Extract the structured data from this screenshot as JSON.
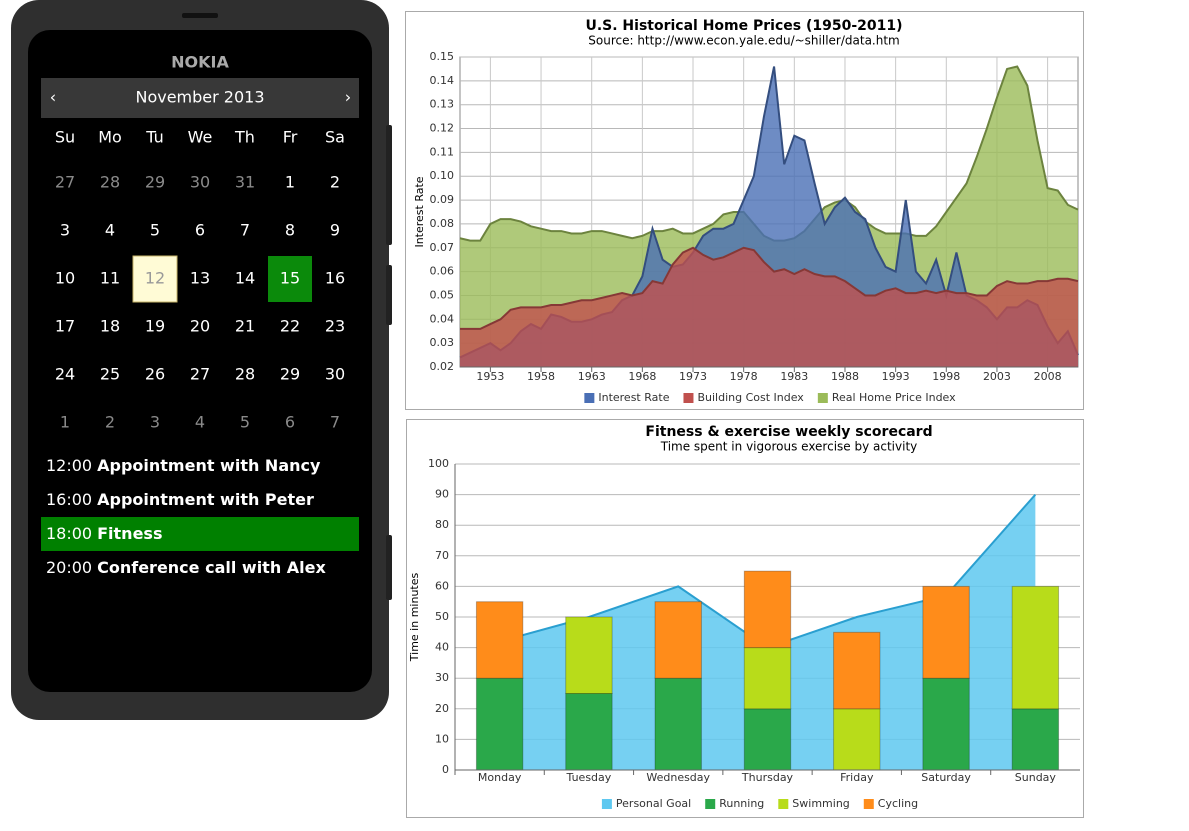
{
  "phone": {
    "brand": "NOKIA",
    "month": "November 2013",
    "prev": "‹",
    "next": "›",
    "weekdays": [
      "Su",
      "Mo",
      "Tu",
      "We",
      "Th",
      "Fr",
      "Sa"
    ],
    "prev_month_days": [
      27,
      28,
      29,
      30,
      31
    ],
    "month_days": [
      1,
      2,
      3,
      4,
      5,
      6,
      7,
      8,
      9,
      10,
      11,
      12,
      13,
      14,
      15,
      16,
      17,
      18,
      19,
      20,
      21,
      22,
      23,
      24,
      25,
      26,
      27,
      28,
      29,
      30
    ],
    "next_month_days": [
      1,
      2,
      3,
      4,
      5,
      6,
      7
    ],
    "today": 12,
    "selected": 15,
    "events": [
      {
        "time": "12:00",
        "title": "Appointment with Nancy",
        "selected": false
      },
      {
        "time": "16:00",
        "title": "Appointment with Peter",
        "selected": false
      },
      {
        "time": "18:00",
        "title": "Fitness",
        "selected": true
      },
      {
        "time": "20:00",
        "title": "Conference call with Alex",
        "selected": false
      }
    ]
  },
  "chart_data": [
    {
      "type": "area",
      "title": "U.S. Historical Home Prices (1950-2011)",
      "subtitle": "Source: http://www.econ.yale.edu/~shiller/data.htm",
      "y_label": "Interest Rate",
      "x": [
        1950,
        1951,
        1952,
        1953,
        1954,
        1955,
        1956,
        1957,
        1958,
        1959,
        1960,
        1961,
        1962,
        1963,
        1964,
        1965,
        1966,
        1967,
        1968,
        1969,
        1970,
        1971,
        1972,
        1973,
        1974,
        1975,
        1976,
        1977,
        1978,
        1979,
        1980,
        1981,
        1982,
        1983,
        1984,
        1985,
        1986,
        1987,
        1988,
        1989,
        1990,
        1991,
        1992,
        1993,
        1994,
        1995,
        1996,
        1997,
        1998,
        1999,
        2000,
        2001,
        2002,
        2003,
        2004,
        2005,
        2006,
        2007,
        2008,
        2009,
        2010,
        2011
      ],
      "xlim": [
        1950,
        2011
      ],
      "xticks": [
        1953,
        1958,
        1963,
        1968,
        1973,
        1978,
        1983,
        1988,
        1993,
        1998,
        2003,
        2008
      ],
      "ylim": [
        0.02,
        0.15
      ],
      "yticks": [
        0.02,
        0.03,
        0.04,
        0.05,
        0.06,
        0.07,
        0.08,
        0.09,
        {
          "value": 0.1,
          "label": "0.10"
        },
        0.11,
        0.12,
        0.13,
        0.14,
        0.15
      ],
      "grid": true,
      "legend": "bottom",
      "series": [
        {
          "name": "Interest Rate",
          "color": "#4a6fb5",
          "values": [
            0.024,
            0.026,
            0.028,
            0.03,
            0.027,
            0.03,
            0.035,
            0.038,
            0.036,
            0.042,
            0.041,
            0.039,
            0.039,
            0.04,
            0.042,
            0.043,
            0.048,
            0.05,
            0.058,
            0.078,
            0.065,
            0.062,
            0.063,
            0.068,
            0.075,
            0.078,
            0.078,
            0.08,
            0.09,
            0.1,
            0.125,
            0.146,
            0.105,
            0.117,
            0.115,
            0.097,
            0.08,
            0.087,
            0.091,
            0.085,
            0.082,
            0.07,
            0.062,
            0.06,
            0.09,
            0.06,
            0.055,
            0.065,
            0.05,
            0.068,
            0.05,
            0.048,
            0.045,
            0.04,
            0.045,
            0.045,
            0.048,
            0.046,
            0.037,
            0.03,
            0.035,
            0.025
          ]
        },
        {
          "name": "Building Cost Index",
          "color": "#c0504d",
          "values": [
            0.036,
            0.036,
            0.036,
            0.038,
            0.04,
            0.044,
            0.045,
            0.045,
            0.045,
            0.046,
            0.046,
            0.047,
            0.048,
            0.048,
            0.049,
            0.05,
            0.051,
            0.05,
            0.051,
            0.056,
            0.055,
            0.063,
            0.068,
            0.07,
            0.067,
            0.065,
            0.066,
            0.068,
            0.07,
            0.069,
            0.064,
            0.06,
            0.061,
            0.059,
            0.061,
            0.059,
            0.058,
            0.058,
            0.056,
            0.053,
            0.05,
            0.05,
            0.052,
            0.053,
            0.051,
            0.051,
            0.052,
            0.051,
            0.052,
            0.051,
            0.051,
            0.05,
            0.05,
            0.054,
            0.056,
            0.055,
            0.055,
            0.056,
            0.056,
            0.057,
            0.057,
            0.056
          ]
        },
        {
          "name": "Real Home Price Index",
          "color": "#9bbb59",
          "values": [
            0.074,
            0.073,
            0.073,
            0.08,
            0.082,
            0.082,
            0.081,
            0.079,
            0.078,
            0.077,
            0.077,
            0.076,
            0.076,
            0.077,
            0.077,
            0.076,
            0.075,
            0.074,
            0.075,
            0.077,
            0.077,
            0.078,
            0.076,
            0.076,
            0.078,
            0.08,
            0.084,
            0.085,
            0.085,
            0.08,
            0.075,
            0.073,
            0.073,
            0.074,
            0.077,
            0.082,
            0.087,
            0.089,
            0.09,
            0.087,
            0.081,
            0.078,
            0.076,
            0.076,
            0.076,
            0.075,
            0.075,
            0.079,
            0.085,
            0.091,
            0.097,
            0.108,
            0.12,
            0.133,
            0.145,
            0.146,
            0.138,
            0.115,
            0.095,
            0.094,
            0.088,
            0.086
          ]
        }
      ]
    },
    {
      "type": "combo",
      "title": "Fitness & exercise weekly scorecard",
      "subtitle": "Time spent in vigorous exercise by activity",
      "y_label": "Time in minutes",
      "categories": [
        "Monday",
        "Tuesday",
        "Wednesday",
        "Thursday",
        "Friday",
        "Saturday",
        "Sunday"
      ],
      "ylim": [
        0,
        100
      ],
      "yticks": [
        0,
        10,
        20,
        30,
        40,
        50,
        60,
        70,
        80,
        90,
        100
      ],
      "grid": true,
      "legend": "bottom",
      "series": [
        {
          "name": "Personal Goal",
          "color": "#5ec8f0",
          "kind": "area",
          "values": [
            42,
            50,
            60,
            40,
            50,
            57,
            90
          ]
        },
        {
          "name": "Running",
          "color": "#2aa84a",
          "kind": "bar",
          "values": [
            30,
            25,
            30,
            20,
            0,
            30,
            20
          ]
        },
        {
          "name": "Swimming",
          "color": "#b8dc1a",
          "kind": "bar",
          "values": [
            0,
            25,
            0,
            20,
            20,
            0,
            40
          ]
        },
        {
          "name": "Cycling",
          "color": "#ff8c1a",
          "kind": "bar",
          "values": [
            25,
            0,
            25,
            25,
            25,
            30,
            0
          ]
        }
      ]
    }
  ]
}
